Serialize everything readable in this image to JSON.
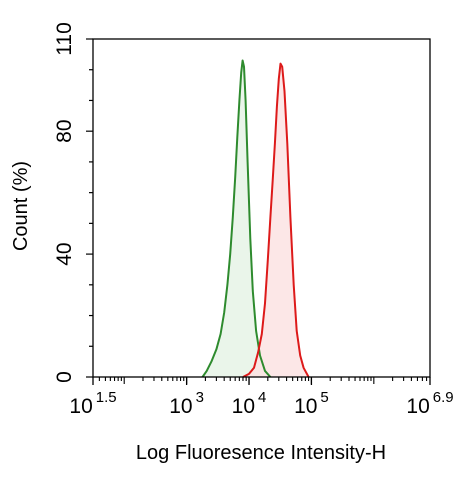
{
  "chart_data": {
    "type": "area",
    "xlabel": "Log Fluoresence Intensity-H",
    "ylabel": "Count  (%)",
    "x_scale": "log",
    "xlim": [
      31.62,
      7943282
    ],
    "ylim": [
      0,
      110
    ],
    "x_ticks": [
      {
        "value": 31.62,
        "base": "10",
        "exp": "1.5"
      },
      {
        "value": 1000,
        "base": "10",
        "exp": "3"
      },
      {
        "value": 10000,
        "base": "10",
        "exp": "4"
      },
      {
        "value": 100000,
        "base": "10",
        "exp": "5"
      },
      {
        "value": 7943282,
        "base": "10",
        "exp": "6.9"
      }
    ],
    "y_ticks": [
      0,
      40,
      80,
      110
    ],
    "series": [
      {
        "color": "#2e8b2e",
        "fill": "#e6f3e6",
        "points": [
          [
            1800,
            0
          ],
          [
            2100,
            2
          ],
          [
            2500,
            5
          ],
          [
            3000,
            9
          ],
          [
            3500,
            14
          ],
          [
            4000,
            21
          ],
          [
            4500,
            30
          ],
          [
            5000,
            40
          ],
          [
            5500,
            52
          ],
          [
            6000,
            65
          ],
          [
            6500,
            78
          ],
          [
            7000,
            90
          ],
          [
            7500,
            99
          ],
          [
            7900,
            103
          ],
          [
            8300,
            101
          ],
          [
            8800,
            90
          ],
          [
            9500,
            70
          ],
          [
            10500,
            45
          ],
          [
            11500,
            28
          ],
          [
            13000,
            15
          ],
          [
            15000,
            7
          ],
          [
            18000,
            2
          ],
          [
            22000,
            0
          ]
        ]
      },
      {
        "color": "#dd1a1a",
        "fill": "#fbe3e3",
        "points": [
          [
            8000,
            0
          ],
          [
            10000,
            1
          ],
          [
            12000,
            3
          ],
          [
            14000,
            8
          ],
          [
            16000,
            14
          ],
          [
            18000,
            24
          ],
          [
            20000,
            38
          ],
          [
            22000,
            52
          ],
          [
            24000,
            64
          ],
          [
            26000,
            76
          ],
          [
            28000,
            88
          ],
          [
            30000,
            97
          ],
          [
            32000,
            102
          ],
          [
            34000,
            101
          ],
          [
            37000,
            93
          ],
          [
            41000,
            76
          ],
          [
            46000,
            52
          ],
          [
            52000,
            30
          ],
          [
            58000,
            15
          ],
          [
            66000,
            7
          ],
          [
            75000,
            3
          ],
          [
            90000,
            0
          ]
        ]
      }
    ]
  }
}
